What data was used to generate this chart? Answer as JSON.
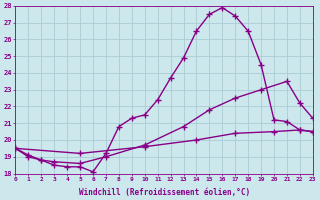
{
  "xlabel": "Windchill (Refroidissement éolien,°C)",
  "ylabel": "",
  "bg_color": "#cce8ec",
  "grid_color": "#aaccd4",
  "line_color": "#880088",
  "ylim": [
    18,
    28
  ],
  "xlim": [
    0,
    23
  ],
  "yticks": [
    18,
    19,
    20,
    21,
    22,
    23,
    24,
    25,
    26,
    27,
    28
  ],
  "xticks": [
    0,
    1,
    2,
    3,
    4,
    5,
    6,
    7,
    8,
    9,
    10,
    11,
    12,
    13,
    14,
    15,
    16,
    17,
    18,
    19,
    20,
    21,
    22,
    23
  ],
  "line1_x": [
    0,
    1,
    2,
    3,
    4,
    5,
    6,
    7,
    8,
    9,
    10,
    11,
    12,
    13,
    14,
    15,
    16,
    17,
    18,
    19,
    20,
    21,
    22,
    23
  ],
  "line1_y": [
    19.5,
    19.0,
    18.8,
    18.5,
    18.4,
    18.4,
    18.1,
    19.2,
    20.8,
    21.3,
    21.5,
    22.4,
    23.7,
    24.9,
    26.5,
    27.5,
    27.9,
    27.4,
    26.5,
    24.5,
    21.2,
    21.1,
    20.6,
    20.5
  ],
  "line2_x": [
    0,
    1,
    2,
    3,
    5,
    7,
    10,
    13,
    15,
    17,
    19,
    21,
    22,
    23
  ],
  "line2_y": [
    19.5,
    19.1,
    18.8,
    18.7,
    18.6,
    19.0,
    19.7,
    20.8,
    21.8,
    22.5,
    23.0,
    23.5,
    22.2,
    21.3
  ],
  "line3_x": [
    0,
    5,
    10,
    14,
    17,
    20,
    22,
    23
  ],
  "line3_y": [
    19.5,
    19.2,
    19.6,
    20.0,
    20.4,
    20.5,
    20.6,
    20.5
  ]
}
